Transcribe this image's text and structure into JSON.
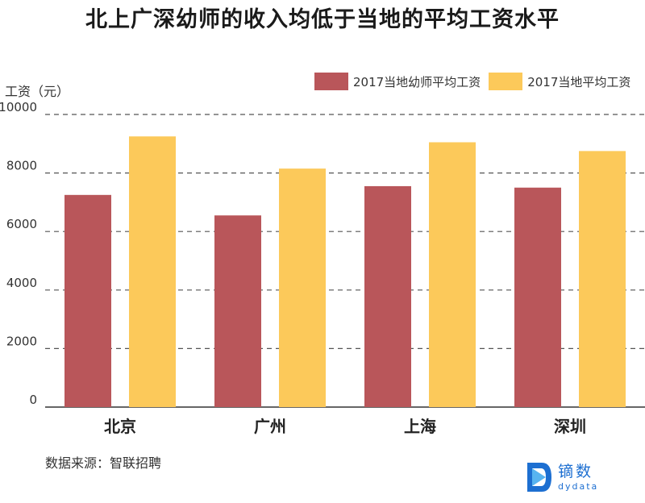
{
  "title": "北上广深幼师的收入均低于当地的平均工资水平",
  "source": "数据来源：智联招聘",
  "logo": {
    "cn": "镝数",
    "en": "dydata"
  },
  "colors": {
    "series1": "#b9565a",
    "series2": "#fcc95a",
    "grid": "#555555",
    "brand": "#1d6fd1"
  },
  "chart_data": {
    "type": "bar",
    "ylabel": "工资（元）",
    "categories": [
      "北京",
      "广州",
      "上海",
      "深圳"
    ],
    "series": [
      {
        "name": "2017当地幼师平均工资",
        "values": [
          7250,
          6550,
          7550,
          7500
        ]
      },
      {
        "name": "2017当地平均工资",
        "values": [
          9250,
          8150,
          9050,
          8750
        ]
      }
    ],
    "yticks": [
      "0",
      "2000",
      "4000",
      "6000",
      "8000",
      "10000"
    ],
    "ylim": [
      0,
      10000
    ],
    "grid": true,
    "legend": "top-right"
  }
}
